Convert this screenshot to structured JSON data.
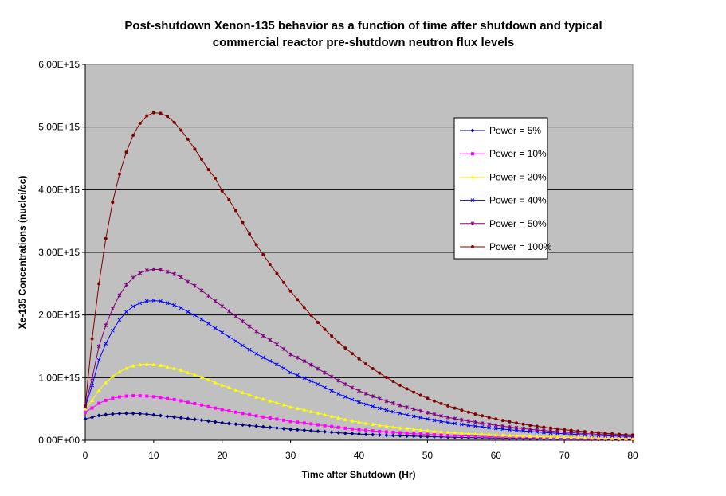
{
  "chart_data": {
    "type": "line",
    "title": "Post-shutdown Xenon-135 behavior as a function of time after shutdown and typical",
    "subtitle": "commercial reactor pre-shutdown neutron flux levels",
    "xlabel": "Time after Shutdown (Hr)",
    "ylabel": "Xe-135 Concentrations (nuclei/cc)",
    "xlim": [
      0,
      80
    ],
    "ylim": [
      0,
      6000000000000000.0
    ],
    "xticks": [
      0,
      10,
      20,
      30,
      40,
      50,
      60,
      70,
      80
    ],
    "xtick_labels": [
      "0",
      "10",
      "20",
      "30",
      "40",
      "50",
      "60",
      "70",
      "80"
    ],
    "yticks": [
      0,
      1000000000000000.0,
      2000000000000000.0,
      3000000000000000.0,
      4000000000000000.0,
      5000000000000000.0,
      6000000000000000.0
    ],
    "ytick_labels": [
      "0.00E+00",
      "1.00E+15",
      "2.00E+15",
      "3.00E+15",
      "4.00E+15",
      "5.00E+15",
      "6.00E+15"
    ],
    "grid": "horizontal",
    "legend_position": "right",
    "plot_background": "#c0c0c0",
    "series": [
      {
        "name": "Power = 5%",
        "color": "#000080",
        "marker": "diamond",
        "x": [
          0,
          2,
          4,
          6,
          8,
          10,
          12,
          15,
          20,
          25,
          30,
          40,
          50,
          60,
          70,
          80
        ],
        "y": [
          340000000000000.0,
          395000000000000.0,
          420000000000000.0,
          430000000000000.0,
          425000000000000.0,
          405000000000000.0,
          380000000000000.0,
          345000000000000.0,
          280000000000000.0,
          225000000000000.0,
          175000000000000.0,
          100000000000000.0,
          60000000000000.0,
          35000000000000.0,
          20000000000000.0,
          12000000000000.0
        ]
      },
      {
        "name": "Power = 10%",
        "color": "#ff00ff",
        "marker": "square",
        "x": [
          0,
          2,
          4,
          6,
          8,
          10,
          12,
          15,
          20,
          25,
          30,
          40,
          50,
          60,
          70,
          80
        ],
        "y": [
          450000000000000.0,
          590000000000000.0,
          670000000000000.0,
          705000000000000.0,
          710000000000000.0,
          695000000000000.0,
          665000000000000.0,
          605000000000000.0,
          490000000000000.0,
          390000000000000.0,
          300000000000000.0,
          170000000000000.0,
          95000000000000.0,
          55000000000000.0,
          32000000000000.0,
          19000000000000.0
        ]
      },
      {
        "name": "Power = 20%",
        "color": "#ffff00",
        "marker": "triangle",
        "x": [
          0,
          2,
          4,
          6,
          8,
          10,
          12,
          15,
          20,
          25,
          30,
          40,
          50,
          60,
          70,
          80
        ],
        "y": [
          500000000000000.0,
          800000000000000.0,
          1020000000000000.0,
          1150000000000000.0,
          1210000000000000.0,
          1210000000000000.0,
          1170000000000000.0,
          1080000000000000.0,
          880000000000000.0,
          690000000000000.0,
          530000000000000.0,
          290000000000000.0,
          155000000000000.0,
          85000000000000.0,
          47000000000000.0,
          27000000000000.0
        ]
      },
      {
        "name": "Power = 40%",
        "color": "#0000ff",
        "marker": "x",
        "x": [
          0,
          2,
          4,
          6,
          8,
          10,
          12,
          15,
          20,
          25,
          30,
          40,
          50,
          60,
          70,
          80
        ],
        "y": [
          530000000000000.0,
          1280000000000000.0,
          1750000000000000.0,
          2050000000000000.0,
          2190000000000000.0,
          2230000000000000.0,
          2190000000000000.0,
          2050000000000000.0,
          1720000000000000.0,
          1380000000000000.0,
          1080000000000000.0,
          610000000000000.0,
          340000000000000.0,
          190000000000000.0,
          105000000000000.0,
          60000000000000.0
        ]
      },
      {
        "name": "Power = 50%",
        "color": "#800080",
        "marker": "star",
        "x": [
          0,
          2,
          4,
          6,
          8,
          10,
          12,
          15,
          20,
          25,
          30,
          40,
          50,
          60,
          70,
          80
        ],
        "y": [
          550000000000000.0,
          1500000000000000.0,
          2100000000000000.0,
          2480000000000000.0,
          2670000000000000.0,
          2730000000000000.0,
          2690000000000000.0,
          2530000000000000.0,
          2140000000000000.0,
          1740000000000000.0,
          1370000000000000.0,
          790000000000000.0,
          440000000000000.0,
          240000000000000.0,
          130000000000000.0,
          75000000000000.0
        ]
      },
      {
        "name": "Power = 100%",
        "color": "#800000",
        "marker": "circle",
        "x": [
          0,
          1,
          2,
          3,
          4,
          5,
          6,
          7,
          8,
          9,
          10,
          11,
          12,
          14,
          16,
          18,
          20,
          25,
          30,
          35,
          40,
          45,
          50,
          55,
          60,
          65,
          70,
          75,
          80
        ],
        "y": [
          550000000000000.0,
          1620000000000000.0,
          2500000000000000.0,
          3220000000000000.0,
          3800000000000000.0,
          4250000000000000.0,
          4600000000000000.0,
          4870000000000000.0,
          5060000000000000.0,
          5180000000000000.0,
          5230000000000000.0,
          5220000000000000.0,
          5170000000000000.0,
          4950000000000000.0,
          4650000000000000.0,
          4320000000000000.0,
          3980000000000000.0,
          3120000000000000.0,
          2380000000000000.0,
          1770000000000000.0,
          1300000000000000.0,
          940000000000000.0,
          670000000000000.0,
          480000000000000.0,
          340000000000000.0,
          240000000000000.0,
          170000000000000.0,
          120000000000000.0,
          85000000000000.0
        ]
      }
    ]
  }
}
